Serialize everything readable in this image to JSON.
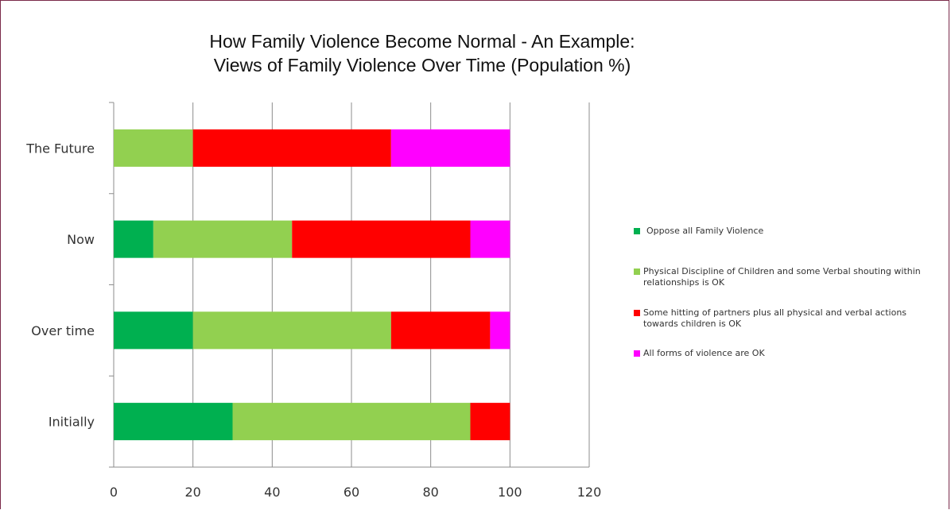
{
  "chart_data": {
    "type": "bar",
    "orientation": "horizontal",
    "stacked": true,
    "title_lines": [
      "How Family Violence Become Normal - An Example:",
      "Views of Family Violence Over Time (Population %)"
    ],
    "categories": [
      "Initially",
      "Over time",
      "Now",
      "The Future"
    ],
    "series": [
      {
        "name": "Oppose all Family Violence",
        "color": "#00b050",
        "values": [
          30,
          20,
          10,
          0
        ]
      },
      {
        "name": "Physical Discipline of Children and some Verbal shouting within relationships is OK",
        "color": "#92d050",
        "values": [
          60,
          50,
          35,
          20
        ]
      },
      {
        "name": "Some hitting of partners plus all physical and verbal actions towards children is OK",
        "color": "#ff0000",
        "values": [
          10,
          25,
          45,
          50
        ]
      },
      {
        "name": "All forms of violence are OK",
        "color": "#ff00ff",
        "values": [
          0,
          5,
          10,
          30
        ]
      }
    ],
    "xlim": [
      0,
      120
    ],
    "xticks": [
      "0",
      "20",
      "40",
      "60",
      "80",
      "100",
      "120"
    ],
    "grid": "vertical",
    "legend_position": "right"
  }
}
